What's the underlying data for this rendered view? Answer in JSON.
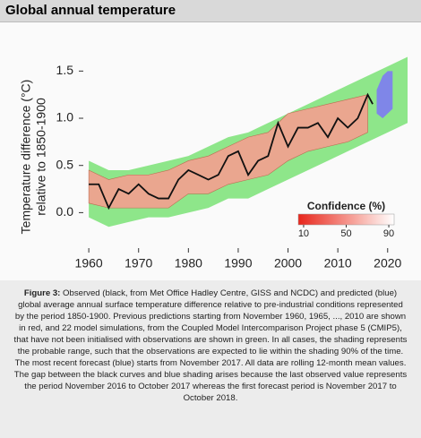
{
  "header": {
    "title": "Global annual temperature"
  },
  "chart_data": {
    "type": "line",
    "ylabel": [
      "Temperature difference (°C)",
      "relative to 1850-1900"
    ],
    "xlim": [
      1958,
      2024
    ],
    "ylim": [
      -0.3,
      1.75
    ],
    "xticks": [
      1960,
      1970,
      1980,
      1990,
      2000,
      2010,
      2020
    ],
    "yticks": [
      {
        "value": 0,
        "label": "0.0"
      },
      0.5,
      {
        "value": 1,
        "label": "1.0"
      },
      1.5
    ],
    "bands": [
      {
        "color": "#8ee68a",
        "x": [
          1960,
          1964,
          1968,
          1972,
          1976,
          1980,
          1984,
          1988,
          1992,
          1996,
          2000,
          2004,
          2008,
          2012,
          2016,
          2020,
          2024
        ],
        "lower": [
          -0.05,
          -0.15,
          -0.1,
          -0.05,
          -0.05,
          0.0,
          0.05,
          0.15,
          0.15,
          0.25,
          0.35,
          0.45,
          0.55,
          0.65,
          0.75,
          0.85,
          0.95
        ],
        "upper": [
          0.55,
          0.45,
          0.45,
          0.5,
          0.55,
          0.6,
          0.7,
          0.8,
          0.85,
          0.95,
          1.05,
          1.15,
          1.25,
          1.35,
          1.45,
          1.55,
          1.65
        ]
      },
      {
        "color": "#f4a090",
        "x": [
          1960,
          1964,
          1968,
          1972,
          1976,
          1980,
          1984,
          1988,
          1992,
          1996,
          2000,
          2004,
          2008,
          2012,
          2016
        ],
        "lower": [
          0.1,
          0.05,
          0.05,
          0.05,
          0.05,
          0.2,
          0.2,
          0.3,
          0.35,
          0.4,
          0.55,
          0.65,
          0.7,
          0.75,
          0.85
        ],
        "upper": [
          0.45,
          0.35,
          0.4,
          0.4,
          0.45,
          0.55,
          0.6,
          0.7,
          0.8,
          0.85,
          1.05,
          1.1,
          1.15,
          1.2,
          1.25
        ]
      },
      {
        "color": "#7f86e8",
        "x": [
          2017.8,
          2019,
          2020,
          2021
        ],
        "lower": [
          1.05,
          1.0,
          1.05,
          1.1
        ],
        "upper": [
          1.3,
          1.45,
          1.5,
          1.5
        ]
      }
    ],
    "series": [
      {
        "color": "#111111",
        "x": [
          1960,
          1962,
          1964,
          1966,
          1968,
          1970,
          1972,
          1974,
          1976,
          1978,
          1980,
          1982,
          1984,
          1986,
          1988,
          1990,
          1992,
          1994,
          1996,
          1998,
          2000,
          2002,
          2004,
          2006,
          2008,
          2010,
          2012,
          2014,
          2016,
          2017
        ],
        "values": [
          0.3,
          0.3,
          0.05,
          0.25,
          0.2,
          0.3,
          0.2,
          0.15,
          0.15,
          0.35,
          0.45,
          0.4,
          0.35,
          0.4,
          0.6,
          0.65,
          0.4,
          0.55,
          0.6,
          0.95,
          0.7,
          0.9,
          0.9,
          0.95,
          0.8,
          1.0,
          0.9,
          1.0,
          1.25,
          1.15
        ]
      }
    ],
    "colorbar": {
      "title": "Confidence (%)",
      "lim": [
        5,
        95
      ],
      "ticks": [
        10,
        50,
        90
      ]
    }
  },
  "caption": {
    "label": "Figure 3:",
    "text": "Observed (black, from Met Office Hadley Centre, GISS and NCDC) and predicted (blue) global average annual surface temperature difference relative to pre-industrial conditions represented by the period 1850-1900. Previous predictions starting from November 1960, 1965, ..., 2010 are shown in red, and 22 model simulations, from the Coupled Model Intercomparison Project phase 5 (CMIP5), that have not been initialised with observations are shown in green. In all cases, the shading represents the probable range, such that the observations are expected to lie within the shading 90% of the time. The most recent forecast (blue) starts from November 2017. All data are rolling 12-month mean values. The gap between the black curves and blue shading arises because the last observed value represents the period November 2016 to October 2017 whereas the first forecast period is November 2017 to October 2018."
  }
}
